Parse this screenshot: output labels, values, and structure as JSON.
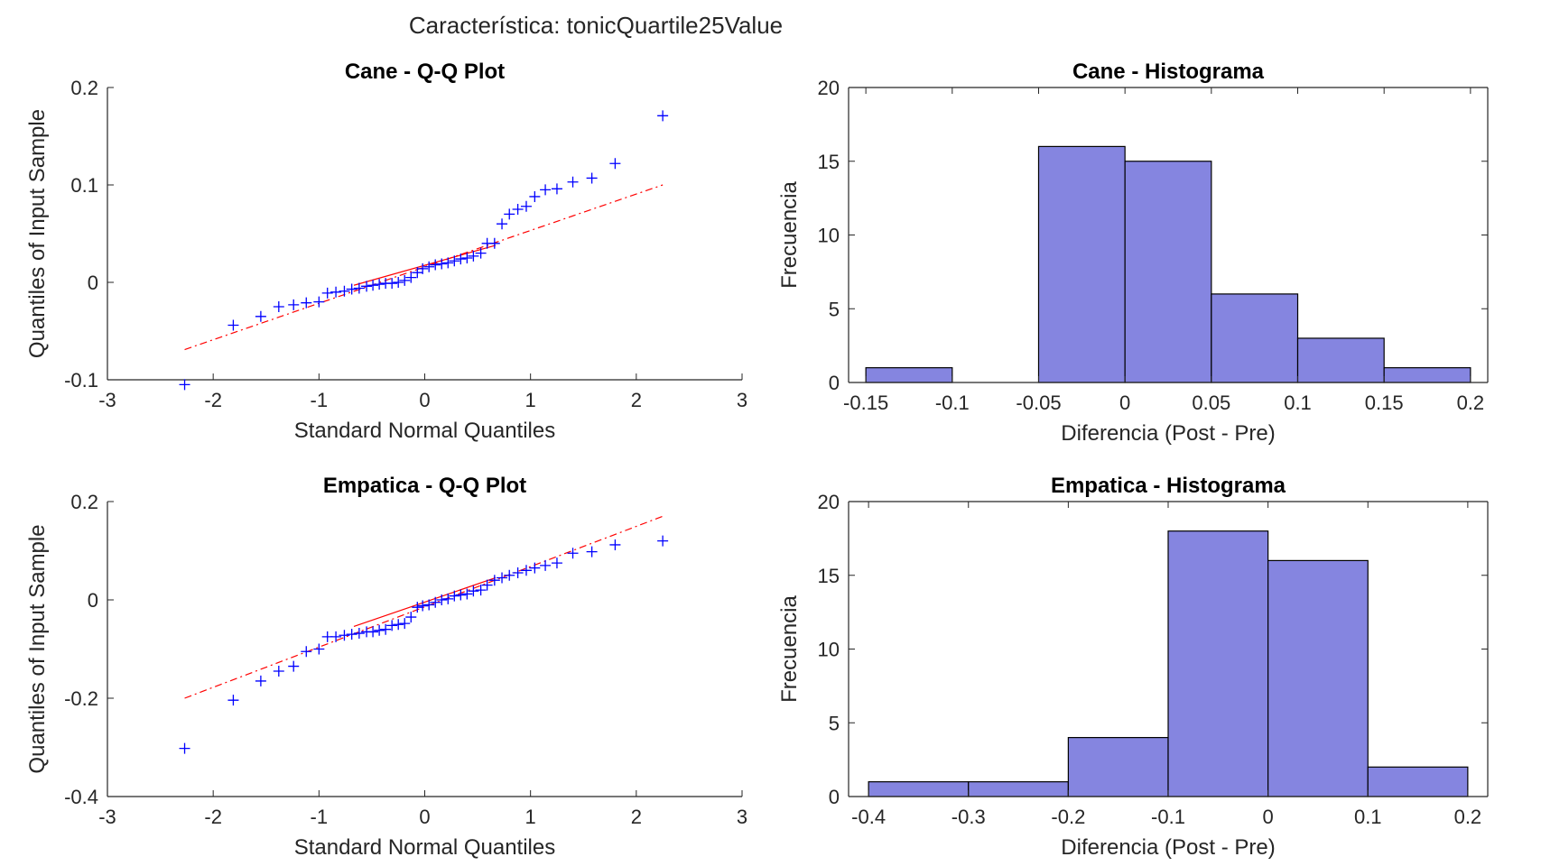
{
  "figure": {
    "suptitle": "Característica: tonicQuartile25Value"
  },
  "colors": {
    "marker": "#0000ff",
    "reference_line": "#ff0000",
    "bar_fill": "#8585e0",
    "bar_edge": "#000000",
    "axis": "#262626"
  },
  "chart_data": [
    {
      "id": "cane-qq",
      "type": "scatter",
      "title": "Cane - Q-Q Plot",
      "xlabel": "Standard Normal Quantiles",
      "ylabel": "Quantiles of Input Sample",
      "xlim": [
        -3,
        3
      ],
      "ylim": [
        -0.1,
        0.2
      ],
      "xticks": [
        -3,
        -2,
        -1,
        0,
        1,
        2,
        3
      ],
      "xtick_labels": [
        "-3",
        "-2",
        "-1",
        "0",
        "1",
        "2",
        "3"
      ],
      "yticks": [
        -0.1,
        0,
        0.1,
        0.2
      ],
      "ytick_labels": [
        "-0.1",
        "0",
        "0.1",
        "0.2"
      ],
      "box": false,
      "marker": "+",
      "x": [
        -2.27,
        -1.81,
        -1.55,
        -1.38,
        -1.24,
        -1.12,
        -1.0,
        -0.92,
        -0.84,
        -0.76,
        -0.69,
        -0.62,
        -0.55,
        -0.49,
        -0.43,
        -0.37,
        -0.31,
        -0.25,
        -0.19,
        -0.13,
        -0.07,
        -0.02,
        0.04,
        0.1,
        0.16,
        0.22,
        0.28,
        0.34,
        0.4,
        0.46,
        0.53,
        0.59,
        0.66,
        0.73,
        0.8,
        0.88,
        0.96,
        1.04,
        1.14,
        1.25,
        1.4,
        1.58,
        1.8,
        2.25
      ],
      "y": [
        -0.105,
        -0.044,
        -0.035,
        -0.025,
        -0.023,
        -0.021,
        -0.02,
        -0.011,
        -0.01,
        -0.009,
        -0.007,
        -0.006,
        -0.004,
        -0.003,
        -0.002,
        -0.001,
        -0.001,
        0.0,
        0.002,
        0.005,
        0.01,
        0.014,
        0.016,
        0.018,
        0.019,
        0.02,
        0.022,
        0.024,
        0.025,
        0.027,
        0.03,
        0.04,
        0.04,
        0.06,
        0.07,
        0.075,
        0.078,
        0.088,
        0.095,
        0.096,
        0.103,
        0.107,
        0.122,
        0.171
      ],
      "reference_line": {
        "x": [
          -0.67,
          0.67
        ],
        "y": [
          -0.003,
          0.038
        ]
      },
      "reference_extension": {
        "x": [
          -2.27,
          2.25
        ],
        "y": [
          -0.069,
          0.1
        ]
      }
    },
    {
      "id": "cane-hist",
      "type": "bar",
      "title": "Cane - Histograma",
      "xlabel": "Diferencia (Post - Pre)",
      "ylabel": "Frecuencia",
      "xlim": [
        -0.16,
        0.21
      ],
      "ylim": [
        0,
        20
      ],
      "xticks": [
        -0.15,
        -0.1,
        -0.05,
        0,
        0.05,
        0.1,
        0.15,
        0.2
      ],
      "xtick_labels": [
        "-0.15",
        "-0.1",
        "-0.05",
        "0",
        "0.05",
        "0.1",
        "0.15",
        "0.2"
      ],
      "yticks": [
        0,
        5,
        10,
        15,
        20
      ],
      "ytick_labels": [
        "0",
        "5",
        "10",
        "15",
        "20"
      ],
      "box": true,
      "bin_edges": [
        -0.15,
        -0.1,
        -0.05,
        0,
        0.05,
        0.1,
        0.15,
        0.2
      ],
      "values": [
        1,
        0,
        16,
        15,
        6,
        3,
        1
      ]
    },
    {
      "id": "empatica-qq",
      "type": "scatter",
      "title": "Empatica - Q-Q Plot",
      "xlabel": "Standard Normal Quantiles",
      "ylabel": "Quantiles of Input Sample",
      "xlim": [
        -3,
        3
      ],
      "ylim": [
        -0.4,
        0.2
      ],
      "xticks": [
        -3,
        -2,
        -1,
        0,
        1,
        2,
        3
      ],
      "xtick_labels": [
        "-3",
        "-2",
        "-1",
        "0",
        "1",
        "2",
        "3"
      ],
      "yticks": [
        -0.4,
        -0.2,
        0,
        0.2
      ],
      "ytick_labels": [
        "-0.4",
        "-0.2",
        "0",
        "0.2"
      ],
      "box": false,
      "marker": "+",
      "x": [
        -2.27,
        -1.81,
        -1.55,
        -1.38,
        -1.24,
        -1.12,
        -1.0,
        -0.92,
        -0.84,
        -0.76,
        -0.69,
        -0.62,
        -0.55,
        -0.49,
        -0.43,
        -0.37,
        -0.31,
        -0.25,
        -0.19,
        -0.13,
        -0.07,
        -0.02,
        0.04,
        0.1,
        0.16,
        0.22,
        0.28,
        0.34,
        0.4,
        0.46,
        0.53,
        0.59,
        0.66,
        0.73,
        0.8,
        0.88,
        0.96,
        1.04,
        1.14,
        1.25,
        1.4,
        1.58,
        1.8,
        2.25
      ],
      "y": [
        -0.302,
        -0.204,
        -0.165,
        -0.145,
        -0.135,
        -0.105,
        -0.1,
        -0.075,
        -0.075,
        -0.072,
        -0.07,
        -0.068,
        -0.065,
        -0.065,
        -0.062,
        -0.06,
        -0.052,
        -0.05,
        -0.048,
        -0.035,
        -0.015,
        -0.012,
        -0.01,
        -0.005,
        0.0,
        0.002,
        0.008,
        0.01,
        0.012,
        0.018,
        0.02,
        0.03,
        0.04,
        0.045,
        0.05,
        0.055,
        0.06,
        0.065,
        0.07,
        0.075,
        0.095,
        0.098,
        0.112,
        0.12
      ],
      "reference_line": {
        "x": [
          -0.67,
          0.67
        ],
        "y": [
          -0.054,
          0.045
        ]
      },
      "reference_extension": {
        "x": [
          -2.27,
          2.25
        ],
        "y": [
          -0.2,
          0.17
        ]
      }
    },
    {
      "id": "empatica-hist",
      "type": "bar",
      "title": "Empatica - Histograma",
      "xlabel": "Diferencia (Post - Pre)",
      "ylabel": "Frecuencia",
      "xlim": [
        -0.42,
        0.22
      ],
      "ylim": [
        0,
        20
      ],
      "xticks": [
        -0.4,
        -0.3,
        -0.2,
        -0.1,
        0,
        0.1,
        0.2
      ],
      "xtick_labels": [
        "-0.4",
        "-0.3",
        "-0.2",
        "-0.1",
        "0",
        "0.1",
        "0.2"
      ],
      "yticks": [
        0,
        5,
        10,
        15,
        20
      ],
      "ytick_labels": [
        "0",
        "5",
        "10",
        "15",
        "20"
      ],
      "box": true,
      "bin_edges": [
        -0.4,
        -0.3,
        -0.2,
        -0.1,
        0,
        0.1,
        0.2
      ],
      "values": [
        1,
        1,
        4,
        18,
        16,
        2
      ]
    }
  ]
}
